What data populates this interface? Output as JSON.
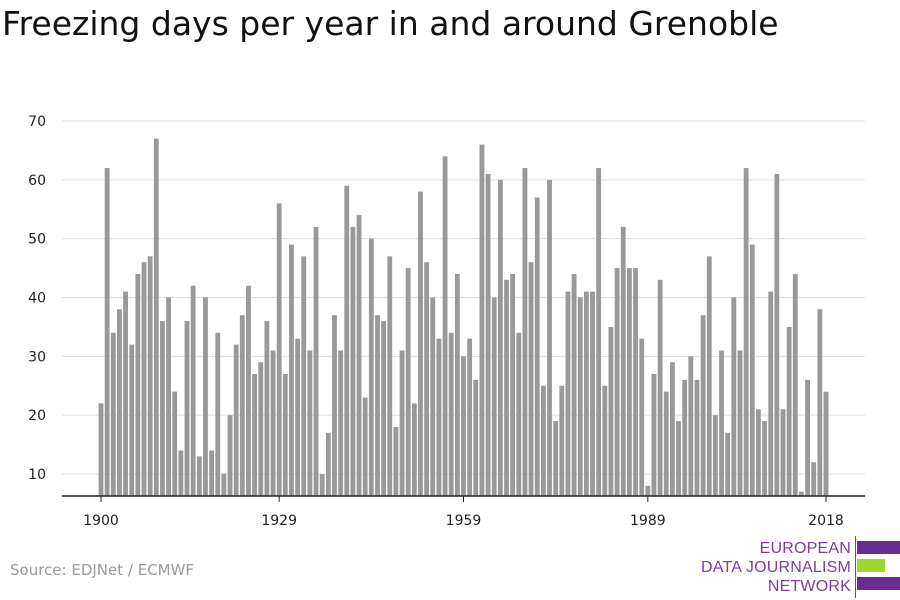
{
  "chart_data": {
    "type": "bar",
    "title": "Freezing days per year in and around Grenoble",
    "xlabel": "",
    "ylabel": "",
    "x_start": 1900,
    "x_end": 2018,
    "x_ticks": [
      1900,
      1929,
      1959,
      1989,
      2018
    ],
    "y_ticks": [
      10,
      20,
      30,
      40,
      50,
      60,
      70
    ],
    "ylim": [
      6,
      70
    ],
    "grid": "horizontal",
    "bar_color": "#999999",
    "values": [
      22,
      62,
      34,
      38,
      41,
      32,
      44,
      46,
      47,
      67,
      36,
      40,
      24,
      14,
      36,
      42,
      13,
      40,
      14,
      34,
      10,
      20,
      32,
      37,
      42,
      27,
      29,
      36,
      31,
      56,
      27,
      49,
      33,
      47,
      31,
      52,
      10,
      17,
      37,
      31,
      59,
      52,
      54,
      23,
      50,
      37,
      36,
      47,
      18,
      31,
      45,
      22,
      58,
      46,
      40,
      33,
      64,
      34,
      44,
      30,
      33,
      26,
      66,
      61,
      40,
      60,
      43,
      44,
      34,
      62,
      46,
      57,
      25,
      60,
      19,
      25,
      41,
      44,
      40,
      41,
      41,
      62,
      25,
      35,
      45,
      52,
      45,
      45,
      33,
      8,
      27,
      43,
      24,
      29,
      19,
      26,
      30,
      26,
      37,
      47,
      20,
      31,
      17,
      40,
      31,
      62,
      49,
      21,
      19,
      41,
      61,
      21,
      35,
      44,
      7,
      26,
      12,
      38,
      24
    ]
  },
  "source": "Source: EDJNet / ECMWF",
  "logo": {
    "line1": "EUROPEAN",
    "line2": "DATA JOURNALISM",
    "line3": "NETWORK",
    "color_primary": "#6a2c91",
    "color_accent": "#9ed72e"
  }
}
